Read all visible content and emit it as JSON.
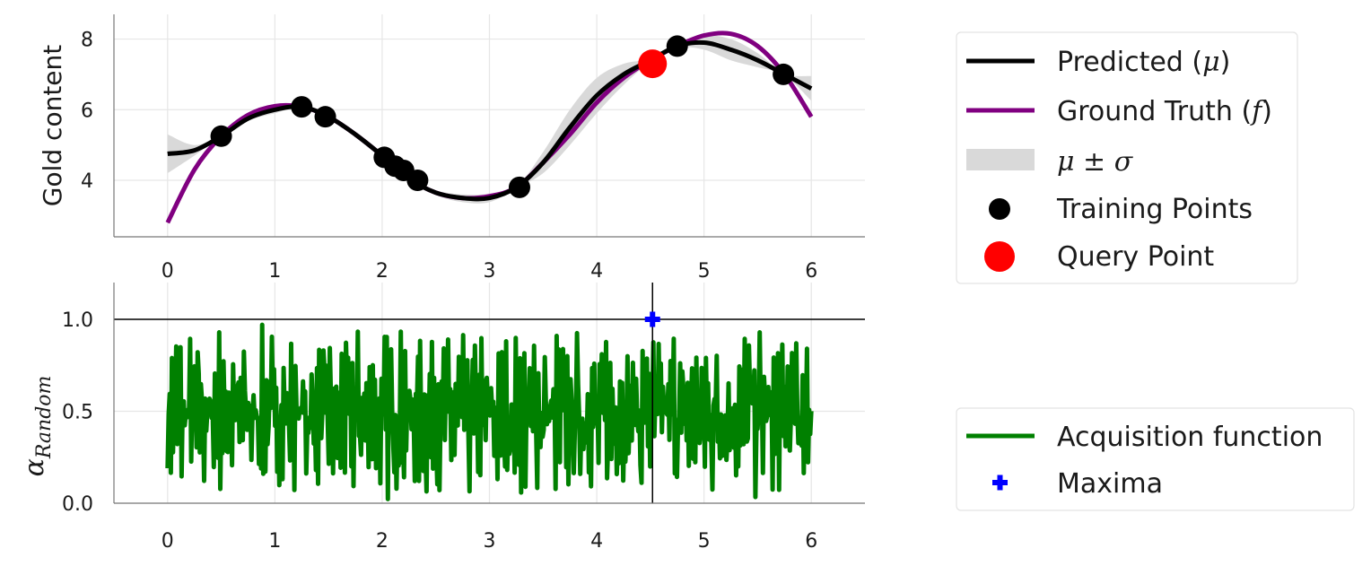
{
  "chart_data": [
    {
      "type": "line",
      "ylabel": "Gold content",
      "xlim": [
        -0.5,
        6.5
      ],
      "ylim": [
        2.4,
        8.7
      ],
      "xticks": [
        "0",
        "1",
        "2",
        "3",
        "4",
        "5",
        "6"
      ],
      "yticks": [
        "4",
        "6",
        "8"
      ],
      "grid": true,
      "legend_placement": "right of plot",
      "colors": {
        "predicted": "#000000",
        "ground_truth": "#800080",
        "band": "#d9d9d9",
        "training": "#000000",
        "query": "#ff0000"
      },
      "series": [
        {
          "name": "Predicted (μ)",
          "x": [
            0,
            0.25,
            0.5,
            0.75,
            1.0,
            1.25,
            1.5,
            1.75,
            2.0,
            2.25,
            2.5,
            2.75,
            3.0,
            3.25,
            3.5,
            3.75,
            4.0,
            4.25,
            4.5,
            4.75,
            5.0,
            5.25,
            5.5,
            5.75,
            6.0
          ],
          "y": [
            4.75,
            4.85,
            5.25,
            5.75,
            6.0,
            6.08,
            5.8,
            5.3,
            4.7,
            4.05,
            3.65,
            3.5,
            3.5,
            3.8,
            4.5,
            5.5,
            6.4,
            7.0,
            7.4,
            7.8,
            7.9,
            7.7,
            7.4,
            7.0,
            6.6
          ]
        },
        {
          "name": "Ground Truth (f)",
          "x": [
            0,
            0.25,
            0.5,
            0.75,
            1.0,
            1.25,
            1.5,
            1.75,
            2.0,
            2.25,
            2.5,
            2.75,
            3.0,
            3.25,
            3.5,
            3.75,
            4.0,
            4.25,
            4.5,
            4.75,
            5.0,
            5.25,
            5.5,
            5.75,
            6.0
          ],
          "y": [
            2.8,
            4.3,
            5.25,
            5.85,
            6.1,
            6.08,
            5.8,
            5.3,
            4.7,
            4.05,
            3.65,
            3.5,
            3.55,
            3.8,
            4.5,
            5.3,
            6.2,
            6.9,
            7.4,
            7.8,
            8.1,
            8.15,
            7.8,
            7.0,
            5.8
          ]
        },
        {
          "name": "μ ± σ",
          "x": [
            0,
            0.25,
            0.5,
            0.75,
            1.0,
            1.25,
            1.5,
            1.75,
            2.0,
            2.25,
            2.5,
            2.75,
            3.0,
            3.25,
            3.5,
            3.75,
            4.0,
            4.25,
            4.5,
            4.75,
            5.0,
            5.25,
            5.5,
            5.75,
            6.0
          ],
          "y_upper": [
            5.3,
            5.0,
            5.27,
            5.82,
            6.1,
            6.1,
            5.82,
            5.35,
            4.72,
            4.08,
            3.72,
            3.6,
            3.62,
            3.82,
            4.8,
            6.0,
            6.9,
            7.3,
            7.45,
            7.85,
            8.1,
            8.0,
            7.6,
            7.02,
            6.95
          ]
        },
        {
          "name": "μ ± σ lower",
          "y_lower": [
            4.2,
            4.7,
            5.23,
            5.68,
            5.9,
            6.06,
            5.78,
            5.25,
            4.68,
            4.02,
            3.58,
            3.38,
            3.38,
            3.78,
            4.2,
            5.0,
            5.9,
            6.7,
            7.35,
            7.75,
            7.7,
            7.4,
            7.2,
            6.98,
            6.25
          ]
        }
      ],
      "training_points": {
        "name": "Training Points",
        "x": [
          0.5,
          1.25,
          1.47,
          2.02,
          2.12,
          2.2,
          2.33,
          3.28,
          4.75,
          5.74
        ],
        "y": [
          5.25,
          6.08,
          5.8,
          4.65,
          4.4,
          4.28,
          4.0,
          3.8,
          7.8,
          7.0
        ]
      },
      "query_point": {
        "name": "Query Point",
        "x": 4.52,
        "y": 7.3
      },
      "legend": [
        {
          "label": "Predicted (μ)",
          "color": "#000000",
          "kind": "line"
        },
        {
          "label": "Ground Truth (f)",
          "color": "#800080",
          "kind": "line"
        },
        {
          "label": "μ ± σ",
          "color": "#d9d9d9",
          "kind": "band"
        },
        {
          "label": "Training Points",
          "color": "#000000",
          "kind": "dot"
        },
        {
          "label": "Query Point",
          "color": "#ff0000",
          "kind": "bigdot"
        }
      ]
    },
    {
      "type": "line",
      "ylabel": "αRandom",
      "xlim": [
        -0.5,
        6.5
      ],
      "ylim": [
        0.0,
        1.2
      ],
      "xticks": [
        "0",
        "1",
        "2",
        "3",
        "4",
        "5",
        "6"
      ],
      "yticks": [
        "0.0",
        "0.5",
        "1.0"
      ],
      "grid": true,
      "hline_y": 1.0,
      "vline_x": 4.52,
      "legend_placement": "lower right, outside plot",
      "colors": {
        "acquisition": "#008000",
        "maxima": "#0000ff",
        "lines": "#000000"
      },
      "series": [
        {
          "name": "Acquisition function",
          "x_range": [
            0,
            6
          ],
          "n_points": 600,
          "y": [
            0.38,
            0.05,
            0.9,
            0.12,
            0.85,
            0.02,
            0.76,
            0.3,
            0.95,
            0.1,
            0.6,
            0.2,
            0.88,
            0.05,
            0.7,
            0.4,
            0.15,
            0.92,
            0.25,
            0.55,
            0.08,
            0.98,
            0.33,
            0.67,
            0.12,
            0.8,
            0.45,
            0.03,
            0.73,
            0.5,
            0.18,
            0.96,
            0.28,
            0.62,
            0.09,
            0.84,
            0.36,
            0.71,
            0.14,
            0.58
          ]
        }
      ],
      "maxima": {
        "name": "Maxima",
        "x": 4.52,
        "y": 1.0
      },
      "legend": [
        {
          "label": "Acquisition function",
          "color": "#008000",
          "kind": "line"
        },
        {
          "label": "Maxima",
          "color": "#0000ff",
          "kind": "plus"
        }
      ]
    }
  ],
  "labels": {
    "top_ylabel": "Gold content",
    "bottom_ylabel_main": "α",
    "bottom_ylabel_sub": "Random",
    "legend_top": [
      "Predicted (",
      "μ",
      ")",
      "Ground Truth (",
      "f",
      ")",
      "μ ± σ",
      "Training Points",
      "Query Point"
    ],
    "legend_bottom": [
      "Acquisition function",
      "Maxima"
    ]
  }
}
